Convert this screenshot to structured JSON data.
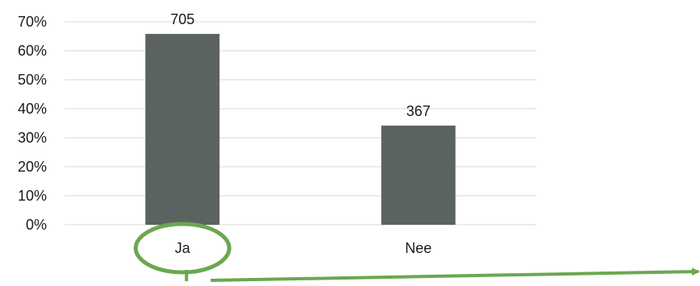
{
  "chart_data": {
    "type": "bar",
    "categories": [
      "Ja",
      "Nee"
    ],
    "values": [
      65.8,
      34.2
    ],
    "data_labels": [
      "705",
      "367"
    ],
    "ylim": [
      0,
      70
    ],
    "y_ticks": [
      "0%",
      "10%",
      "20%",
      "30%",
      "40%",
      "50%",
      "60%",
      "70%"
    ],
    "grid": true,
    "legend": "none",
    "bar_color": "#5a6360",
    "gridline_color": "#d9d9d9",
    "highlight": {
      "category": "Ja",
      "shape": "ellipse",
      "color": "#6aa84f",
      "arrow_direction": "right"
    }
  }
}
